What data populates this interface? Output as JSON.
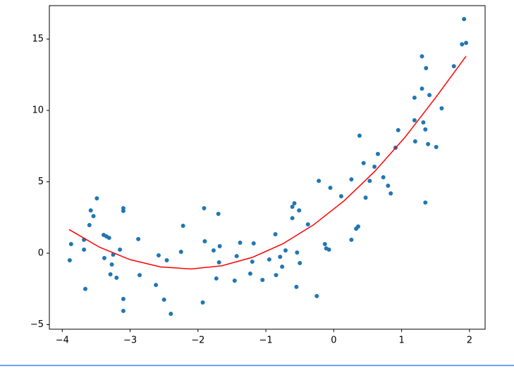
{
  "chart_data": {
    "type": "scatter",
    "scatter": {
      "color": "#1f77b4",
      "x": [
        -3.89,
        -3.87,
        -3.68,
        -3.66,
        -3.68,
        -3.6,
        -3.58,
        -3.54,
        -3.49,
        -3.39,
        -3.35,
        -3.31,
        -3.38,
        -3.27,
        -3.25,
        -3.29,
        -3.2,
        -3.15,
        -3.1,
        -3.1,
        -3.1,
        -3.1,
        -2.88,
        -2.86,
        -2.62,
        -2.58,
        -2.5,
        -2.46,
        -2.4,
        -2.25,
        -2.22,
        -1.93,
        -1.91,
        -1.9,
        -1.77,
        -1.73,
        -1.7,
        -1.68,
        -1.69,
        -1.46,
        -1.43,
        -1.38,
        -1.23,
        -1.2,
        -1.18,
        -1.05,
        -0.95,
        -0.86,
        -0.85,
        -0.79,
        -0.76,
        -0.71,
        -0.61,
        -0.61,
        -0.58,
        -0.54,
        -0.55,
        -0.51,
        -0.5,
        -0.38,
        -0.25,
        -0.22,
        -0.13,
        -0.11,
        -0.07,
        -0.05,
        0.11,
        0.26,
        0.26,
        0.33,
        0.36,
        0.38,
        0.44,
        0.47,
        0.53,
        0.6,
        0.65,
        0.73,
        0.8,
        0.84,
        0.91,
        0.95,
        1.19,
        1.19,
        1.2,
        1.3,
        1.3,
        1.32,
        1.36,
        1.35,
        1.35,
        1.39,
        1.41,
        1.51,
        1.59,
        1.77,
        1.89,
        1.92,
        1.95
      ],
      "y": [
        -0.49,
        0.64,
        0.25,
        -2.5,
        0.94,
        1.97,
        3.0,
        2.6,
        3.84,
        1.28,
        1.18,
        1.08,
        -0.34,
        -0.79,
        -0.1,
        -1.48,
        -1.72,
        0.25,
        3.15,
        2.96,
        -3.2,
        -4.04,
        0.99,
        -1.53,
        -2.22,
        -0.15,
        -3.25,
        -0.49,
        -4.24,
        0.1,
        1.92,
        -3.45,
        3.15,
        0.84,
        0.2,
        -1.77,
        2.76,
        0.49,
        -0.64,
        -1.92,
        -0.2,
        0.74,
        -1.43,
        -0.59,
        0.69,
        -1.87,
        -0.44,
        1.33,
        -1.53,
        -0.25,
        -0.94,
        0.2,
        2.46,
        3.25,
        3.5,
        0.05,
        -2.36,
        3.0,
        -0.69,
        2.02,
        -3.0,
        5.07,
        0.64,
        0.34,
        0.25,
        4.58,
        3.99,
        0.94,
        5.17,
        1.72,
        1.87,
        8.23,
        6.31,
        3.89,
        5.07,
        6.06,
        6.95,
        5.32,
        4.73,
        4.19,
        7.39,
        8.62,
        10.89,
        9.31,
        7.83,
        13.79,
        11.53,
        9.16,
        12.96,
        8.67,
        3.55,
        7.64,
        11.08,
        7.44,
        10.15,
        13.1,
        14.63,
        16.4,
        14.73
      ]
    },
    "line": {
      "color": "#ff0000",
      "x": [
        -3.9,
        -3.45,
        -3.0,
        -2.55,
        -2.1,
        -1.65,
        -1.2,
        -0.75,
        -0.3,
        0.15,
        0.6,
        1.05,
        1.5,
        1.95
      ],
      "y": [
        1.66,
        0.42,
        -0.45,
        -0.96,
        -1.1,
        -0.88,
        -0.29,
        0.66,
        1.98,
        3.66,
        5.71,
        8.12,
        10.89,
        13.8
      ]
    },
    "xlim": [
      -4.19,
      2.23
    ],
    "ylim": [
      -5.32,
      17.34
    ],
    "xticks": [
      {
        "value": -4,
        "label": "−4"
      },
      {
        "value": -3,
        "label": "−3"
      },
      {
        "value": -2,
        "label": "−2"
      },
      {
        "value": -1,
        "label": "−1"
      },
      0,
      1,
      2
    ],
    "yticks": [
      {
        "value": -5,
        "label": "−5"
      },
      0,
      5,
      10,
      15
    ]
  }
}
